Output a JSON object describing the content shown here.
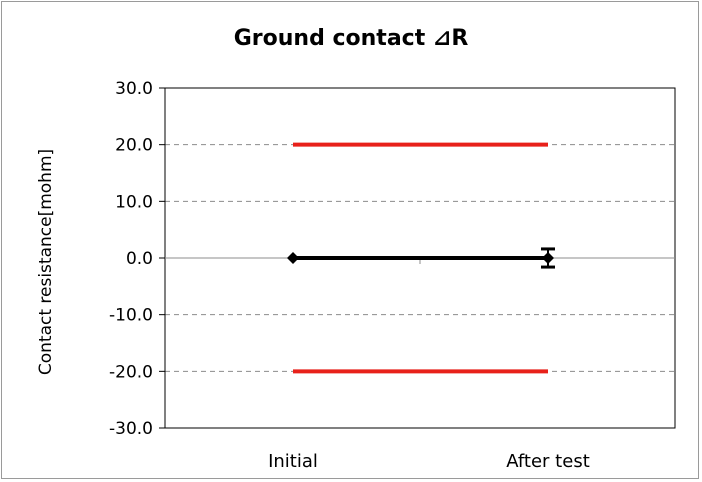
{
  "chart_data": {
    "type": "line",
    "title": "Ground contact ⊿R",
    "ylabel": "Contact resistance[mohm]",
    "xlabel": "",
    "categories": [
      "Initial",
      "After test"
    ],
    "ylim": [
      -30.0,
      30.0
    ],
    "yticks": [
      "30.0",
      "20.0",
      "10.0",
      "0.0",
      "-10.0",
      "-20.0",
      "-30.0"
    ],
    "ytick_values": [
      30,
      20,
      10,
      0,
      -10,
      -20,
      -30
    ],
    "gridlines": "dashed",
    "series": [
      {
        "values": [
          0.0,
          0.0
        ],
        "error_high": [
          0.0,
          1.6
        ],
        "error_low": [
          0.0,
          -1.6
        ],
        "color": "#000000",
        "marker": "diamond"
      }
    ],
    "limit_lines": [
      {
        "value": 20.0,
        "color": "#e8211a"
      },
      {
        "value": -20.0,
        "color": "#e8211a"
      }
    ]
  }
}
